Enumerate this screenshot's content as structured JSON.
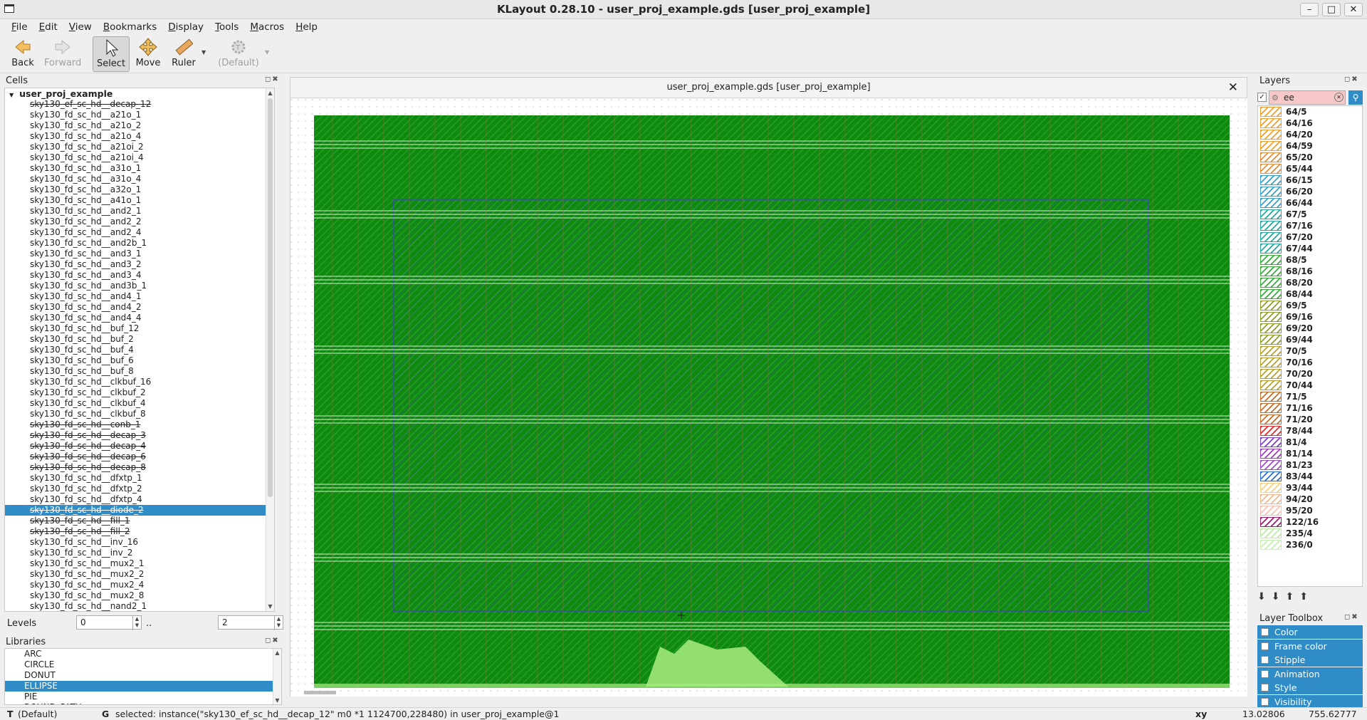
{
  "window": {
    "title": "KLayout 0.28.10 - user_proj_example.gds [user_proj_example]"
  },
  "menu": [
    "File",
    "Edit",
    "View",
    "Bookmarks",
    "Display",
    "Tools",
    "Macros",
    "Help"
  ],
  "toolbar": {
    "back": "Back",
    "forward": "Forward",
    "select": "Select",
    "move": "Move",
    "ruler": "Ruler",
    "default_mode": "(Default)"
  },
  "cells": {
    "title": "Cells",
    "root": "user_proj_example",
    "items": [
      {
        "name": "sky130_ef_sc_hd__decap_12",
        "ghost": true
      },
      {
        "name": "sky130_fd_sc_hd__a21o_1"
      },
      {
        "name": "sky130_fd_sc_hd__a21o_2"
      },
      {
        "name": "sky130_fd_sc_hd__a21o_4"
      },
      {
        "name": "sky130_fd_sc_hd__a21oi_2"
      },
      {
        "name": "sky130_fd_sc_hd__a21oi_4"
      },
      {
        "name": "sky130_fd_sc_hd__a31o_1"
      },
      {
        "name": "sky130_fd_sc_hd__a31o_4"
      },
      {
        "name": "sky130_fd_sc_hd__a32o_1"
      },
      {
        "name": "sky130_fd_sc_hd__a41o_1"
      },
      {
        "name": "sky130_fd_sc_hd__and2_1"
      },
      {
        "name": "sky130_fd_sc_hd__and2_2"
      },
      {
        "name": "sky130_fd_sc_hd__and2_4"
      },
      {
        "name": "sky130_fd_sc_hd__and2b_1"
      },
      {
        "name": "sky130_fd_sc_hd__and3_1"
      },
      {
        "name": "sky130_fd_sc_hd__and3_2"
      },
      {
        "name": "sky130_fd_sc_hd__and3_4"
      },
      {
        "name": "sky130_fd_sc_hd__and3b_1"
      },
      {
        "name": "sky130_fd_sc_hd__and4_1"
      },
      {
        "name": "sky130_fd_sc_hd__and4_2"
      },
      {
        "name": "sky130_fd_sc_hd__and4_4"
      },
      {
        "name": "sky130_fd_sc_hd__buf_12"
      },
      {
        "name": "sky130_fd_sc_hd__buf_2"
      },
      {
        "name": "sky130_fd_sc_hd__buf_4"
      },
      {
        "name": "sky130_fd_sc_hd__buf_6"
      },
      {
        "name": "sky130_fd_sc_hd__buf_8"
      },
      {
        "name": "sky130_fd_sc_hd__clkbuf_16"
      },
      {
        "name": "sky130_fd_sc_hd__clkbuf_2"
      },
      {
        "name": "sky130_fd_sc_hd__clkbuf_4"
      },
      {
        "name": "sky130_fd_sc_hd__clkbuf_8"
      },
      {
        "name": "sky130_fd_sc_hd__conb_1",
        "ghost": true
      },
      {
        "name": "sky130_fd_sc_hd__decap_3",
        "ghost": true
      },
      {
        "name": "sky130_fd_sc_hd__decap_4",
        "ghost": true
      },
      {
        "name": "sky130_fd_sc_hd__decap_6",
        "ghost": true
      },
      {
        "name": "sky130_fd_sc_hd__decap_8",
        "ghost": true
      },
      {
        "name": "sky130_fd_sc_hd__dfxtp_1"
      },
      {
        "name": "sky130_fd_sc_hd__dfxtp_2"
      },
      {
        "name": "sky130_fd_sc_hd__dfxtp_4"
      },
      {
        "name": "sky130_fd_sc_hd__diode_2",
        "ghost": true,
        "selected": true
      },
      {
        "name": "sky130_fd_sc_hd__fill_1",
        "ghost": true
      },
      {
        "name": "sky130_fd_sc_hd__fill_2",
        "ghost": true
      },
      {
        "name": "sky130_fd_sc_hd__inv_16"
      },
      {
        "name": "sky130_fd_sc_hd__inv_2"
      },
      {
        "name": "sky130_fd_sc_hd__mux2_1"
      },
      {
        "name": "sky130_fd_sc_hd__mux2_2"
      },
      {
        "name": "sky130_fd_sc_hd__mux2_4"
      },
      {
        "name": "sky130_fd_sc_hd__mux2_8"
      },
      {
        "name": "sky130_fd_sc_hd__nand2_1"
      }
    ]
  },
  "levels": {
    "label": "Levels",
    "from": "0",
    "sep": "..",
    "to": "2"
  },
  "libraries": {
    "title": "Libraries",
    "items": [
      {
        "name": "ARC"
      },
      {
        "name": "CIRCLE"
      },
      {
        "name": "DONUT"
      },
      {
        "name": "ELLIPSE",
        "selected": true
      },
      {
        "name": "PIE"
      },
      {
        "name": "ROUND_PATH"
      }
    ]
  },
  "view": {
    "tab_title": "user_proj_example.gds [user_proj_example]"
  },
  "layers": {
    "title": "Layers",
    "search_value": "ee",
    "items": [
      {
        "name": "64/5",
        "color": "#f0a030"
      },
      {
        "name": "64/16",
        "color": "#f0a030"
      },
      {
        "name": "64/20",
        "color": "#f0a030"
      },
      {
        "name": "64/59",
        "color": "#f0a030"
      },
      {
        "name": "65/20",
        "color": "#e09040"
      },
      {
        "name": "65/44",
        "color": "#e09040"
      },
      {
        "name": "66/15",
        "color": "#3aa0c8"
      },
      {
        "name": "66/20",
        "color": "#3aa0c8"
      },
      {
        "name": "66/44",
        "color": "#3aa0c8"
      },
      {
        "name": "67/5",
        "color": "#2aa8a0"
      },
      {
        "name": "67/16",
        "color": "#2aa8a0"
      },
      {
        "name": "67/20",
        "color": "#2aa8a0"
      },
      {
        "name": "67/44",
        "color": "#2aa8a0"
      },
      {
        "name": "68/5",
        "color": "#3caa3c"
      },
      {
        "name": "68/16",
        "color": "#3caa3c"
      },
      {
        "name": "68/20",
        "color": "#3caa3c"
      },
      {
        "name": "68/44",
        "color": "#3caa3c"
      },
      {
        "name": "69/5",
        "color": "#90a030"
      },
      {
        "name": "69/16",
        "color": "#90a030"
      },
      {
        "name": "69/20",
        "color": "#90a030"
      },
      {
        "name": "69/44",
        "color": "#90a030"
      },
      {
        "name": "70/5",
        "color": "#b8a030"
      },
      {
        "name": "70/16",
        "color": "#b8a030"
      },
      {
        "name": "70/20",
        "color": "#b8a030"
      },
      {
        "name": "70/44",
        "color": "#b8a030"
      },
      {
        "name": "71/5",
        "color": "#c07030"
      },
      {
        "name": "71/16",
        "color": "#c07030"
      },
      {
        "name": "71/20",
        "color": "#c07030"
      },
      {
        "name": "78/44",
        "color": "#e03030"
      },
      {
        "name": "81/4",
        "color": "#8040d0"
      },
      {
        "name": "81/14",
        "color": "#a040c0"
      },
      {
        "name": "81/23",
        "color": "#a050c0"
      },
      {
        "name": "83/44",
        "color": "#3070d0"
      },
      {
        "name": "93/44",
        "color": "#f8d080"
      },
      {
        "name": "94/20",
        "color": "#f0b890"
      },
      {
        "name": "95/20",
        "color": "#f8c0b0"
      },
      {
        "name": "122/16",
        "color": "#a02070"
      },
      {
        "name": "235/4",
        "color": "#c0e8a8"
      },
      {
        "name": "236/0",
        "color": "#c8f0b0"
      }
    ]
  },
  "layer_toolbox": {
    "title": "Layer Toolbox",
    "items": [
      "Color",
      "Frame color",
      "Stipple",
      "Animation",
      "Style",
      "Visibility"
    ]
  },
  "status": {
    "mode_prefix": "T",
    "mode": "(Default)",
    "grid_prefix": "G",
    "message": "selected: instance(\"sky130_ef_sc_hd__decap_12\" m0 *1 1124700,228480) in user_proj_example@1",
    "coord_label": "xy",
    "x": "13.02806",
    "y": "755.62777"
  },
  "colors": {
    "layout_fill": "#0f8a0f",
    "selection": "#308cc6",
    "core_outline": "#3a4fa8"
  }
}
